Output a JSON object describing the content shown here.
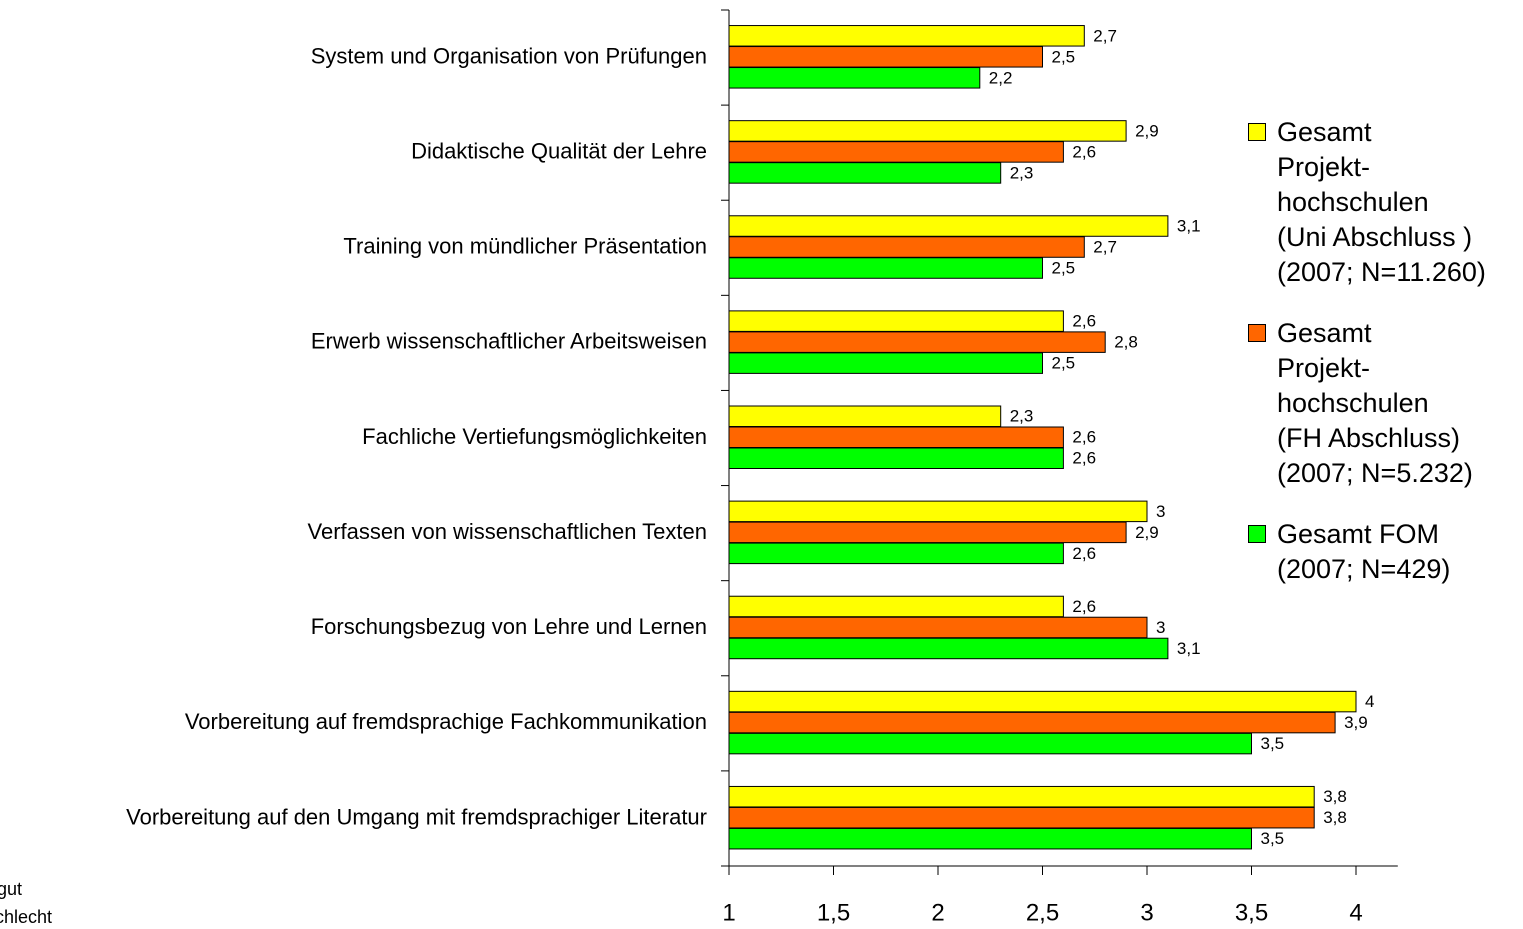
{
  "chart_data": {
    "type": "hbar",
    "categories": [
      "System und Organisation von Prüfungen",
      "Didaktische Qualität der Lehre",
      "Training von mündlicher Präsentation",
      "Erwerb wissenschaftlicher Arbeitsweisen",
      "Fachliche Vertiefungsmöglichkeiten",
      "Verfassen von wissenschaftlichen Texten",
      "Forschungsbezug von Lehre und Lernen",
      "Vorbereitung auf fremdsprachige Fachkommunikation",
      "Vorbereitung auf den Umgang mit fremdsprachiger Literatur"
    ],
    "series": [
      {
        "name": "Gesamt\nProjekt-\nhochschulen\n(Uni Abschluss )\n(2007; N=11.260)",
        "color": "#ffff00",
        "values": [
          2.7,
          2.9,
          3.1,
          2.6,
          2.3,
          3,
          2.6,
          4,
          3.8
        ],
        "value_labels": [
          "2,7",
          "2,9",
          "3,1",
          "2,6",
          "2,3",
          "3",
          "2,6",
          "4",
          "3,8"
        ]
      },
      {
        "name": "Gesamt\nProjekt-\nhochschulen\n(FH Abschluss)\n(2007; N=5.232)",
        "color": "#ff6600",
        "values": [
          2.5,
          2.6,
          2.7,
          2.8,
          2.6,
          2.9,
          3,
          3.9,
          3.8
        ],
        "value_labels": [
          "2,5",
          "2,6",
          "2,7",
          "2,8",
          "2,6",
          "2,9",
          "3",
          "3,9",
          "3,8"
        ]
      },
      {
        "name": "Gesamt FOM\n(2007; N=429)",
        "color": "#00ff00",
        "values": [
          2.2,
          2.3,
          2.5,
          2.5,
          2.6,
          2.6,
          3.1,
          3.5,
          3.5
        ],
        "value_labels": [
          "2,2",
          "2,3",
          "2,5",
          "2,5",
          "2,6",
          "2,6",
          "3,1",
          "3,5",
          "3,5"
        ]
      }
    ],
    "xlim": [
      1,
      4.2
    ],
    "xticks": [
      1,
      {
        "value": 1.5,
        "label": "1,5"
      },
      2,
      {
        "value": 2.5,
        "label": "2,5"
      },
      3,
      {
        "value": 3.5,
        "label": "3,5"
      },
      4
    ],
    "legend": "right",
    "annotations": [
      "gut",
      "chlecht"
    ]
  }
}
